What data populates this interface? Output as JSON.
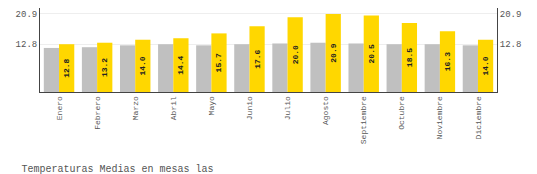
{
  "chart_data": {
    "type": "bar",
    "title": "Temperaturas Medias en mesas las",
    "categories": [
      "Enero",
      "Febrero",
      "Marzo",
      "Abril",
      "Mayo",
      "Junio",
      "Julio",
      "Agosto",
      "Septiembre",
      "Octubre",
      "Noviembre",
      "Diciembre"
    ],
    "series": [
      {
        "color": "#C0C0C0",
        "values": [
          11.8,
          12.0,
          12.5,
          12.8,
          12.5,
          12.8,
          13.0,
          13.2,
          13.0,
          12.8,
          12.8,
          12.5
        ]
      },
      {
        "color": "#FFD700",
        "values": [
          12.8,
          13.2,
          14.0,
          14.4,
          15.7,
          17.6,
          20.0,
          20.9,
          20.5,
          18.5,
          16.3,
          14.0
        ],
        "data_labels": true,
        "value_labels": [
          "12.8",
          "13.2",
          "14.0",
          "14.4",
          "15.7",
          "17.6",
          "20.0",
          "20.9",
          "20.5",
          "18.5",
          "16.3",
          "14.0"
        ]
      }
    ],
    "ylim": [
      0,
      22.5
    ],
    "yticks": [
      12.8,
      20.9
    ],
    "y2lim": [
      0,
      22.5
    ],
    "y2ticks": [
      12.8,
      20.9
    ],
    "grid": true
  }
}
